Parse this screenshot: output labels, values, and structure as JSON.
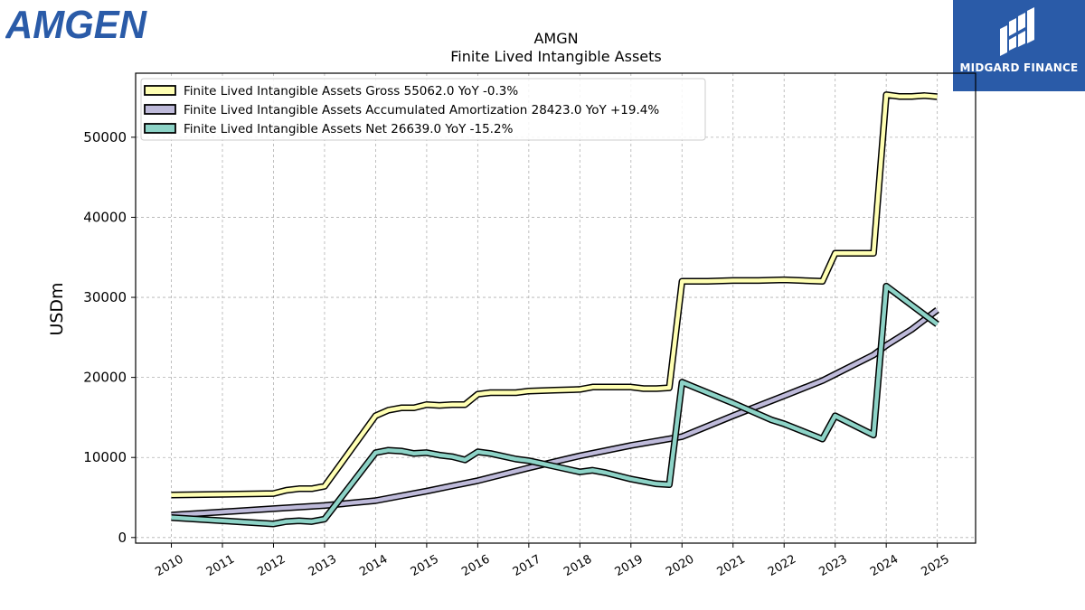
{
  "brand": {
    "left_logo_text": "AMGEN",
    "left_logo_color": "#2a5ba8",
    "right_logo_text": "MIDGARD FINANCE",
    "right_logo_bg": "#2a5ba8"
  },
  "chart_data": {
    "type": "line",
    "title": "AMGN",
    "subtitle": "Finite Lived Intangible Assets",
    "ylabel": "USDm",
    "xlabel": "",
    "xlim": [
      2009.3,
      2025.75
    ],
    "ylim": [
      -700,
      58000
    ],
    "grid": true,
    "legend_position": "top-left",
    "x_ticks": [
      "2010",
      "2011",
      "2012",
      "2013",
      "2014",
      "2015",
      "2016",
      "2017",
      "2018",
      "2019",
      "2020",
      "2021",
      "2022",
      "2023",
      "2024",
      "2025"
    ],
    "y_ticks": [
      0,
      10000,
      20000,
      30000,
      40000,
      50000
    ],
    "series": [
      {
        "name": "Finite Lived Intangible Assets Gross",
        "legend_label": "Finite Lived Intangible Assets Gross  55062.0 YoY -0.3%",
        "color": "#ffffb3",
        "points": [
          [
            2010.0,
            5300
          ],
          [
            2012.0,
            5500
          ],
          [
            2012.25,
            5900
          ],
          [
            2012.5,
            6100
          ],
          [
            2012.75,
            6100
          ],
          [
            2013.0,
            6400
          ],
          [
            2014.0,
            15200
          ],
          [
            2014.25,
            15900
          ],
          [
            2014.5,
            16200
          ],
          [
            2014.75,
            16200
          ],
          [
            2015.0,
            16600
          ],
          [
            2015.25,
            16500
          ],
          [
            2015.5,
            16600
          ],
          [
            2015.75,
            16600
          ],
          [
            2016.0,
            17900
          ],
          [
            2016.25,
            18100
          ],
          [
            2016.5,
            18100
          ],
          [
            2016.75,
            18100
          ],
          [
            2017.0,
            18300
          ],
          [
            2017.5,
            18400
          ],
          [
            2018.0,
            18500
          ],
          [
            2018.25,
            18800
          ],
          [
            2018.5,
            18800
          ],
          [
            2019.0,
            18800
          ],
          [
            2019.25,
            18600
          ],
          [
            2019.5,
            18600
          ],
          [
            2019.75,
            18700
          ],
          [
            2020.0,
            32000
          ],
          [
            2020.5,
            32000
          ],
          [
            2021.0,
            32100
          ],
          [
            2021.5,
            32100
          ],
          [
            2022.0,
            32200
          ],
          [
            2022.75,
            32000
          ],
          [
            2023.0,
            35500
          ],
          [
            2023.75,
            35500
          ],
          [
            2024.0,
            55300
          ],
          [
            2024.25,
            55100
          ],
          [
            2024.5,
            55100
          ],
          [
            2024.75,
            55200
          ],
          [
            2025.0,
            55062
          ]
        ]
      },
      {
        "name": "Finite Lived Intangible Assets Accumulated Amortization",
        "legend_label": "Finite Lived Intangible Assets Accumulated Amortization  28423.0 YoY +19.4%",
        "color": "#bebada",
        "points": [
          [
            2010.0,
            2800
          ],
          [
            2011.0,
            3200
          ],
          [
            2012.0,
            3600
          ],
          [
            2013.0,
            4000
          ],
          [
            2014.0,
            4600
          ],
          [
            2015.0,
            5800
          ],
          [
            2016.0,
            7100
          ],
          [
            2017.0,
            8700
          ],
          [
            2018.0,
            10200
          ],
          [
            2019.0,
            11500
          ],
          [
            2020.0,
            12600
          ],
          [
            2021.0,
            15200
          ],
          [
            2022.0,
            17700
          ],
          [
            2022.75,
            19600
          ],
          [
            2023.0,
            20400
          ],
          [
            2023.75,
            22800
          ],
          [
            2024.0,
            24000
          ],
          [
            2024.5,
            26000
          ],
          [
            2025.0,
            28423
          ]
        ]
      },
      {
        "name": "Finite Lived Intangible Assets Net",
        "legend_label": "Finite Lived Intangible Assets Net  26639.0 YoY -15.2%",
        "color": "#8dd3c7",
        "points": [
          [
            2010.0,
            2500
          ],
          [
            2011.0,
            2100
          ],
          [
            2012.0,
            1700
          ],
          [
            2012.25,
            2000
          ],
          [
            2012.5,
            2100
          ],
          [
            2012.75,
            2000
          ],
          [
            2013.0,
            2300
          ],
          [
            2014.0,
            10600
          ],
          [
            2014.25,
            10900
          ],
          [
            2014.5,
            10800
          ],
          [
            2014.75,
            10500
          ],
          [
            2015.0,
            10600
          ],
          [
            2015.25,
            10300
          ],
          [
            2015.5,
            10100
          ],
          [
            2015.75,
            9700
          ],
          [
            2016.0,
            10700
          ],
          [
            2016.25,
            10500
          ],
          [
            2016.75,
            9800
          ],
          [
            2017.0,
            9600
          ],
          [
            2017.5,
            8900
          ],
          [
            2018.0,
            8200
          ],
          [
            2018.25,
            8400
          ],
          [
            2018.5,
            8100
          ],
          [
            2019.0,
            7300
          ],
          [
            2019.5,
            6700
          ],
          [
            2019.75,
            6600
          ],
          [
            2020.0,
            19400
          ],
          [
            2021.0,
            16800
          ],
          [
            2021.75,
            14700
          ],
          [
            2022.0,
            14200
          ],
          [
            2022.75,
            12300
          ],
          [
            2023.0,
            15200
          ],
          [
            2023.75,
            12800
          ],
          [
            2024.0,
            31400
          ],
          [
            2025.0,
            26639
          ]
        ]
      }
    ]
  }
}
